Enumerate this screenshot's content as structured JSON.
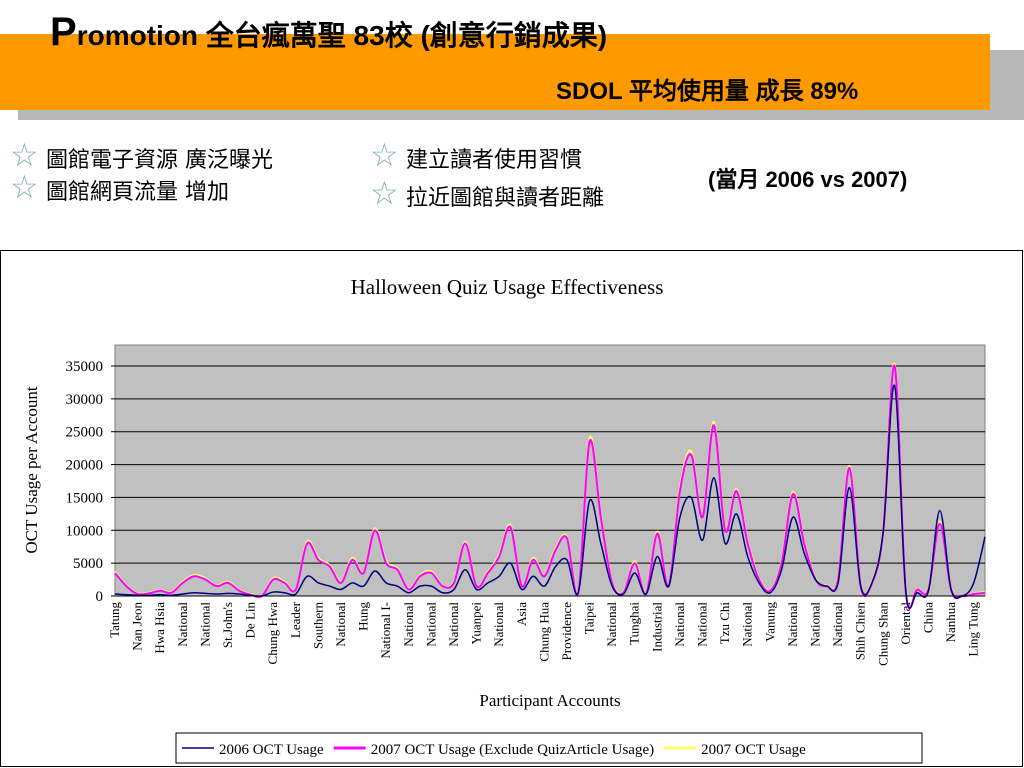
{
  "header": {
    "title": "Promotion 全台瘋萬聖 83校 (創意行銷成果)",
    "subtitle": "SDOL 平均使用量 成長 89%"
  },
  "bullets": [
    "圖館電子資源 廣泛曝光",
    "圖館網頁流量 增加",
    "建立讀者使用習慣",
    "拉近圖館與讀者距離"
  ],
  "note": "(當月 2006 vs 2007)",
  "chart_data": {
    "type": "line",
    "title": "Halloween Quiz Usage Effectiveness",
    "x_label": "Participant Accounts",
    "y_label": "OCT Usage per Account",
    "categories": [
      "Tatung",
      null,
      "Nan Jeon",
      null,
      "Hwa Hsia",
      null,
      "National",
      null,
      "National",
      null,
      "St.John's",
      null,
      "De Lin",
      null,
      "Chung Hwa",
      null,
      "Leader",
      null,
      "Southern",
      null,
      "National",
      null,
      "Hung",
      null,
      "National I-",
      null,
      "National",
      null,
      "National",
      null,
      "National",
      null,
      "Yuanpei",
      null,
      "National",
      null,
      "Asia",
      null,
      "Chung Hua",
      null,
      "Providence",
      null,
      "Taipei",
      null,
      "National",
      null,
      "Tunghai",
      null,
      "Industrial",
      null,
      "National",
      null,
      "National",
      null,
      "Tzu Chi",
      null,
      "National",
      null,
      "Vanung",
      null,
      "National",
      null,
      "National",
      null,
      "National",
      null,
      "Shih Chien",
      null,
      "Chung Shan",
      null,
      "Oriental",
      null,
      "China",
      null,
      "Nanhua",
      null,
      "Ling Tung",
      null
    ],
    "series": [
      {
        "name": "2006 OCT Usage",
        "color": "#000080",
        "values": [
          300,
          200,
          100,
          100,
          200,
          100,
          300,
          500,
          400,
          300,
          400,
          300,
          100,
          0,
          600,
          500,
          300,
          3000,
          2000,
          1500,
          1000,
          2000,
          1500,
          3800,
          2000,
          1500,
          500,
          1500,
          1500,
          500,
          1000,
          4000,
          1000,
          2000,
          3000,
          5000,
          1000,
          3000,
          1500,
          4500,
          5500,
          500,
          14500,
          8000,
          1500,
          300,
          3500,
          300,
          6000,
          1500,
          12000,
          15000,
          8500,
          18000,
          8000,
          12500,
          6000,
          2000,
          500,
          4000,
          12000,
          6500,
          2500,
          1500,
          2000,
          16500,
          1500,
          2000,
          10000,
          32000,
          500,
          500,
          800,
          13000,
          1000,
          0,
          2000,
          9000
        ]
      },
      {
        "name": "2007 OCT Usage (Exclude QuizArticle Usage)",
        "color": "#ff00ff",
        "values": [
          3500,
          1500,
          300,
          400,
          800,
          500,
          2000,
          3000,
          2500,
          1500,
          2000,
          800,
          200,
          0,
          2500,
          2000,
          1000,
          8000,
          5500,
          4500,
          2000,
          5500,
          3500,
          10000,
          5000,
          4000,
          1000,
          3000,
          3500,
          1500,
          2000,
          8000,
          1500,
          3500,
          6000,
          10500,
          1500,
          5500,
          3000,
          7000,
          8800,
          500,
          23500,
          12000,
          2000,
          500,
          5000,
          300,
          9500,
          1500,
          16000,
          21500,
          12000,
          26000,
          10000,
          16000,
          8000,
          2500,
          800,
          5000,
          15500,
          8000,
          2500,
          1500,
          2500,
          19500,
          1500,
          2000,
          10000,
          35000,
          500,
          1000,
          1000,
          11000,
          1000,
          0,
          300,
          500
        ]
      },
      {
        "name": "2007 OCT Usage",
        "color": "#ffff66",
        "values": [
          3700,
          1600,
          400,
          500,
          900,
          600,
          2200,
          3200,
          2700,
          1600,
          2200,
          900,
          300,
          0,
          2700,
          2200,
          1100,
          8300,
          5800,
          4700,
          2200,
          5800,
          3700,
          10300,
          5300,
          4200,
          1100,
          3200,
          3700,
          1600,
          2200,
          8300,
          1600,
          3700,
          6300,
          10800,
          1600,
          5800,
          3200,
          7300,
          9000,
          600,
          24000,
          12300,
          2200,
          600,
          5300,
          400,
          9800,
          1600,
          16500,
          22000,
          12300,
          26500,
          10300,
          16300,
          8300,
          2700,
          900,
          5300,
          15800,
          8300,
          2700,
          1600,
          2700,
          19800,
          1600,
          2200,
          10300,
          35300,
          600,
          1100,
          1100,
          11300,
          1100,
          0,
          400,
          600
        ]
      }
    ],
    "ylim": [
      0,
      35000
    ],
    "yticks": [
      0,
      5000,
      10000,
      15000,
      20000,
      25000,
      30000,
      35000
    ],
    "grid": true,
    "legend": "bottom",
    "plot_color": "#c0c0c0"
  }
}
